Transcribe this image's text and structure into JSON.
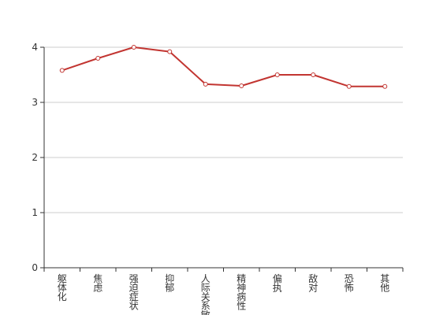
{
  "chart_data": {
    "type": "line",
    "categories": [
      "躯体化",
      "焦虑",
      "强迫症状",
      "抑郁",
      "人际关系敏感",
      "精神病性",
      "偏执",
      "敌对",
      "恐怖",
      "其他"
    ],
    "series": [
      {
        "values": [
          3.58,
          3.8,
          4.0,
          3.92,
          3.33,
          3.3,
          3.5,
          3.5,
          3.29,
          3.29
        ],
        "color": "#c23531"
      }
    ],
    "yticks": [
      0,
      1,
      2,
      3,
      4
    ],
    "ylim": [
      0,
      4
    ],
    "grid": true,
    "legend": "none"
  }
}
